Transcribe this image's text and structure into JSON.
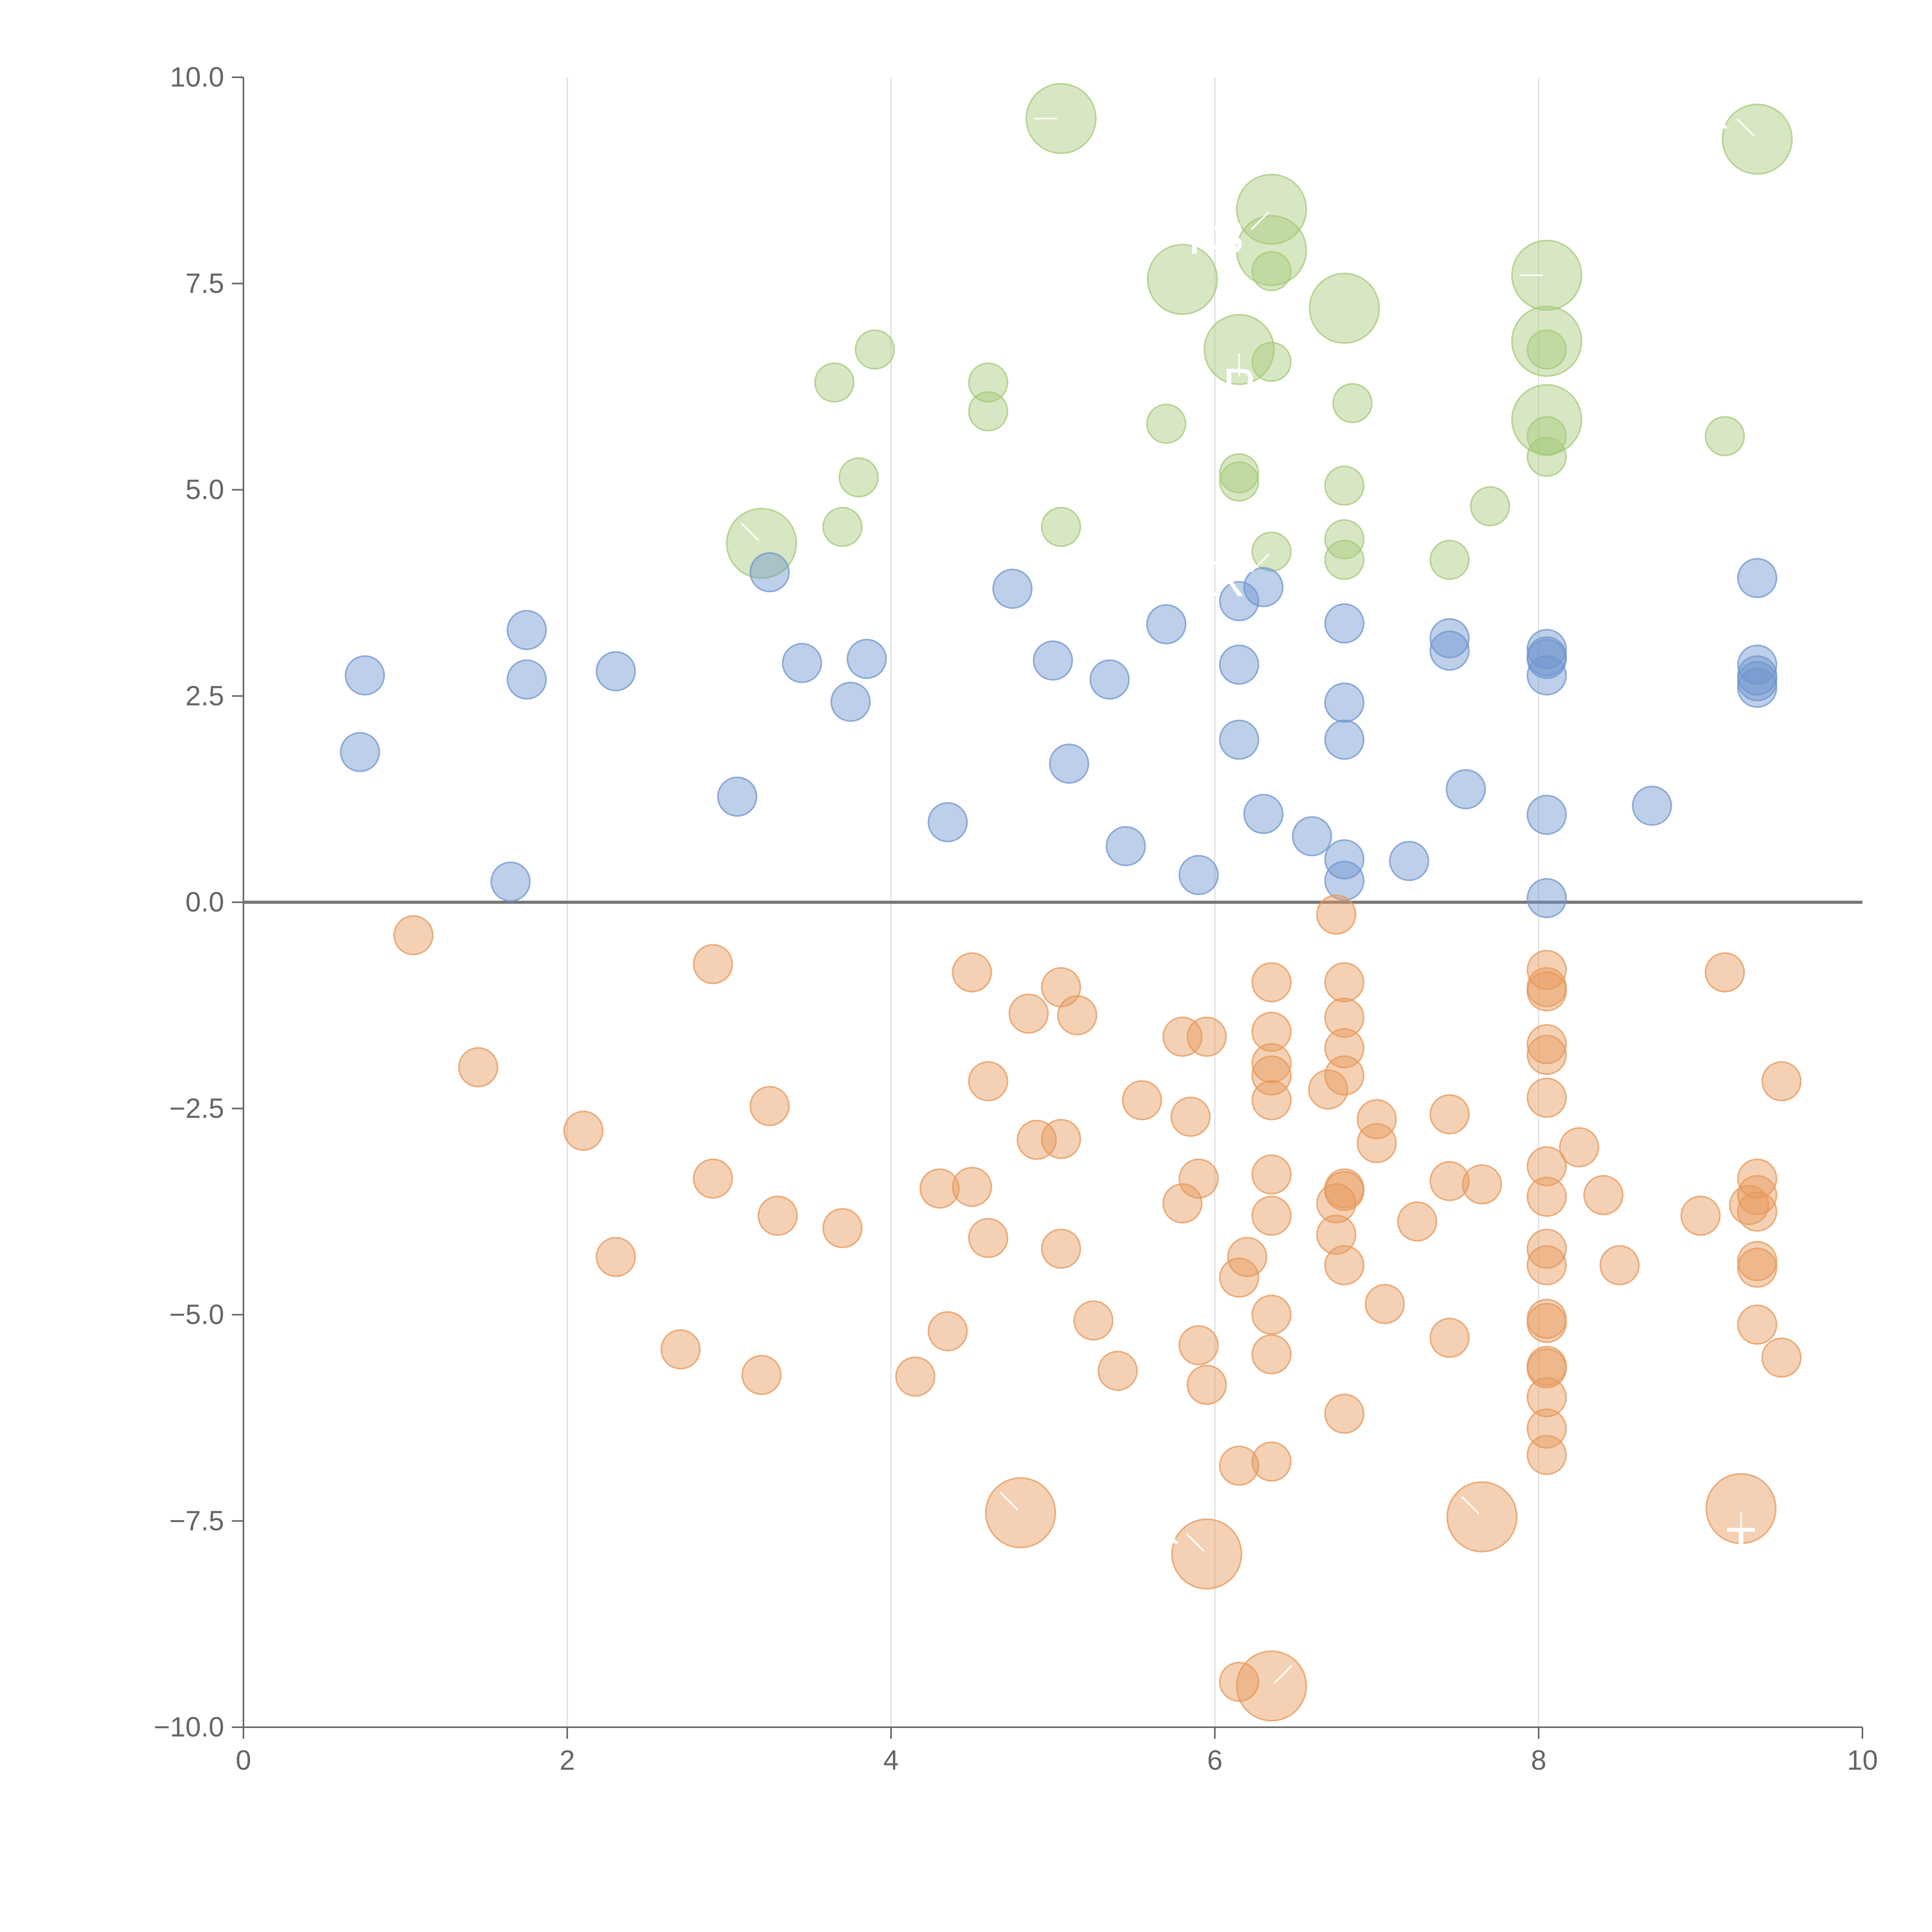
{
  "chart_data": {
    "type": "scatter",
    "title": "",
    "xlabel": "",
    "ylabel": "",
    "xlim": [
      0,
      10
    ],
    "ylim": [
      -10,
      10
    ],
    "grid": "vertical",
    "x_ticks": [
      0,
      2,
      4,
      6,
      8,
      10
    ],
    "x_tick_labels": [
      "0",
      "2",
      "4",
      "6",
      "8",
      "10"
    ],
    "y_ticks": [
      -10,
      -7.5,
      -5,
      -2.5,
      0,
      2.5,
      5,
      7.5,
      10
    ],
    "y_tick_labels": [
      "−10.0",
      "−7.5",
      "−5.0",
      "−2.5",
      "0.0",
      "2.5",
      "5.0",
      "7.5",
      "10.0"
    ],
    "colors": {
      "green": "#a6c97a",
      "blue": "#6f95cf",
      "orange": "#e6985b",
      "axis": "#666666",
      "zero_line": "#777777",
      "grid": "#dddddd",
      "label": "#ffffff"
    },
    "series": [
      {
        "name": "green",
        "color": "#a6c97a",
        "points": [
          [
            5.05,
            9.5,
            2
          ],
          [
            9.35,
            9.25,
            2
          ],
          [
            6.35,
            8.4,
            2
          ],
          [
            6.35,
            7.9,
            2
          ],
          [
            6.35,
            7.65,
            1
          ],
          [
            5.8,
            7.55,
            2
          ],
          [
            8.05,
            7.6,
            2
          ],
          [
            6.8,
            7.2,
            2
          ],
          [
            6.15,
            6.7,
            2
          ],
          [
            8.05,
            6.8,
            2
          ],
          [
            6.35,
            6.55,
            1
          ],
          [
            3.9,
            6.7,
            1
          ],
          [
            3.65,
            6.3,
            1
          ],
          [
            4.6,
            6.3,
            1
          ],
          [
            4.6,
            5.95,
            1
          ],
          [
            6.85,
            6.05,
            1
          ],
          [
            8.05,
            5.85,
            2
          ],
          [
            8.05,
            6.7,
            1
          ],
          [
            8.05,
            5.65,
            1
          ],
          [
            8.05,
            5.4,
            1
          ],
          [
            5.7,
            5.8,
            1
          ],
          [
            9.15,
            5.65,
            1
          ],
          [
            3.8,
            5.15,
            1
          ],
          [
            6.15,
            5.2,
            1
          ],
          [
            6.15,
            5.1,
            1
          ],
          [
            6.8,
            5.05,
            1
          ],
          [
            7.7,
            4.8,
            1
          ],
          [
            3.2,
            4.35,
            2
          ],
          [
            3.7,
            4.55,
            1
          ],
          [
            5.05,
            4.55,
            1
          ],
          [
            6.35,
            4.25,
            1
          ],
          [
            6.8,
            4.4,
            1
          ],
          [
            6.8,
            4.15,
            1
          ],
          [
            7.45,
            4.15,
            1
          ]
        ],
        "labels": [
          {
            "text": "I",
            "at": [
              5.05,
              9.5
            ],
            "dir": "l"
          },
          {
            "text": "R",
            "at": [
              9.35,
              9.25
            ],
            "dir": "tl"
          },
          {
            "text": "YS",
            "at": [
              6.35,
              8.4
            ],
            "dir": "bl"
          },
          {
            "text": "F",
            "at": [
              8.05,
              7.6
            ],
            "dir": "l"
          },
          {
            "text": "P",
            "at": [
              6.15,
              6.7
            ],
            "dir": "b"
          },
          {
            "text": "X",
            "at": [
              6.35,
              4.25
            ],
            "dir": "bl"
          },
          {
            "text": "V",
            "at": [
              3.2,
              4.35
            ],
            "dir": "tl"
          }
        ]
      },
      {
        "name": "blue",
        "color": "#6f95cf",
        "points": [
          [
            0.75,
            2.75
          ],
          [
            0.72,
            1.82
          ],
          [
            1.75,
            3.3
          ],
          [
            1.75,
            2.7
          ],
          [
            2.3,
            2.8
          ],
          [
            1.65,
            0.25
          ],
          [
            3.05,
            1.28
          ],
          [
            3.25,
            4.0
          ],
          [
            3.45,
            2.9
          ],
          [
            3.75,
            2.43
          ],
          [
            3.85,
            2.95
          ],
          [
            4.35,
            0.97
          ],
          [
            4.75,
            3.8
          ],
          [
            5.0,
            2.93
          ],
          [
            5.1,
            1.68
          ],
          [
            5.35,
            2.7
          ],
          [
            5.45,
            0.68
          ],
          [
            5.7,
            3.37
          ],
          [
            5.9,
            0.33
          ],
          [
            6.15,
            3.65
          ],
          [
            6.15,
            2.88
          ],
          [
            6.15,
            1.97
          ],
          [
            6.3,
            3.82
          ],
          [
            6.3,
            1.07
          ],
          [
            6.6,
            0.8
          ],
          [
            6.8,
            3.38
          ],
          [
            6.8,
            2.42
          ],
          [
            6.8,
            1.97
          ],
          [
            6.8,
            0.52
          ],
          [
            6.8,
            0.26
          ],
          [
            7.2,
            0.5
          ],
          [
            7.45,
            3.2
          ],
          [
            7.45,
            3.05
          ],
          [
            7.55,
            1.37
          ],
          [
            8.05,
            3.07
          ],
          [
            8.05,
            2.98
          ],
          [
            8.05,
            2.95
          ],
          [
            8.05,
            2.75
          ],
          [
            8.05,
            1.06
          ],
          [
            8.05,
            0.05
          ],
          [
            8.7,
            1.17
          ],
          [
            9.35,
            3.93
          ],
          [
            9.35,
            2.88
          ],
          [
            9.35,
            2.75
          ],
          [
            9.35,
            2.68
          ],
          [
            9.35,
            2.6
          ]
        ]
      },
      {
        "name": "orange",
        "color": "#e6985b",
        "points": [
          [
            1.05,
            -0.4,
            1
          ],
          [
            1.45,
            -2.0,
            1
          ],
          [
            2.1,
            -2.77,
            1
          ],
          [
            2.3,
            -4.3,
            1
          ],
          [
            2.7,
            -5.42,
            1
          ],
          [
            2.9,
            -0.75,
            1
          ],
          [
            2.9,
            -3.35,
            1
          ],
          [
            3.2,
            -5.73,
            1
          ],
          [
            3.25,
            -2.47,
            1
          ],
          [
            3.3,
            -3.8,
            1
          ],
          [
            3.7,
            -3.95,
            1
          ],
          [
            4.15,
            -5.75,
            1
          ],
          [
            4.3,
            -3.47,
            1
          ],
          [
            4.35,
            -5.2,
            1
          ],
          [
            4.5,
            -0.85,
            1
          ],
          [
            4.5,
            -3.45,
            1
          ],
          [
            4.6,
            -2.17,
            1
          ],
          [
            4.6,
            -4.07,
            1
          ],
          [
            4.8,
            -7.4,
            2
          ],
          [
            4.85,
            -1.35,
            1
          ],
          [
            4.9,
            -2.88,
            1
          ],
          [
            5.05,
            -1.03,
            1
          ],
          [
            5.05,
            -2.87,
            1
          ],
          [
            5.05,
            -4.2,
            1
          ],
          [
            5.15,
            -1.37,
            1
          ],
          [
            5.25,
            -5.07,
            1
          ],
          [
            5.4,
            -5.68,
            1
          ],
          [
            5.55,
            -2.4,
            1
          ],
          [
            5.8,
            -1.63,
            1
          ],
          [
            5.8,
            -3.65,
            1
          ],
          [
            5.85,
            -2.6,
            1
          ],
          [
            5.9,
            -5.37,
            1
          ],
          [
            5.9,
            -3.35,
            1
          ],
          [
            5.95,
            -1.63,
            1
          ],
          [
            5.95,
            -5.85,
            1
          ],
          [
            5.95,
            -7.9,
            2
          ],
          [
            6.15,
            -4.55,
            1
          ],
          [
            6.15,
            -6.83,
            1
          ],
          [
            6.15,
            -9.45,
            1
          ],
          [
            6.2,
            -4.3,
            1
          ],
          [
            6.35,
            -0.97,
            1
          ],
          [
            6.35,
            -1.57,
            1
          ],
          [
            6.35,
            -1.95,
            1
          ],
          [
            6.35,
            -2.1,
            1
          ],
          [
            6.35,
            -2.4,
            1
          ],
          [
            6.35,
            -3.3,
            1
          ],
          [
            6.35,
            -3.8,
            1
          ],
          [
            6.35,
            -5.0,
            1
          ],
          [
            6.35,
            -5.48,
            1
          ],
          [
            6.35,
            -6.78,
            1
          ],
          [
            6.35,
            -9.5,
            2
          ],
          [
            6.7,
            -2.27,
            1
          ],
          [
            6.75,
            -3.65,
            1
          ],
          [
            6.75,
            -4.03,
            1
          ],
          [
            6.75,
            -0.15,
            1
          ],
          [
            6.8,
            -0.97,
            1
          ],
          [
            6.8,
            -1.4,
            1
          ],
          [
            6.8,
            -1.77,
            1
          ],
          [
            6.8,
            -2.1,
            1
          ],
          [
            6.8,
            -3.47,
            1
          ],
          [
            6.8,
            -3.5,
            1
          ],
          [
            6.8,
            -4.4,
            1
          ],
          [
            6.8,
            -6.2,
            1
          ],
          [
            7.0,
            -2.63,
            1
          ],
          [
            7.0,
            -2.92,
            1
          ],
          [
            7.05,
            -4.87,
            1
          ],
          [
            7.25,
            -3.87,
            1
          ],
          [
            7.45,
            -2.57,
            1
          ],
          [
            7.45,
            -3.38,
            1
          ],
          [
            7.45,
            -5.28,
            1
          ],
          [
            7.65,
            -3.42,
            1
          ],
          [
            7.65,
            -7.45,
            2
          ],
          [
            8.05,
            -0.82,
            1
          ],
          [
            8.05,
            -1.03,
            1
          ],
          [
            8.05,
            -1.08,
            1
          ],
          [
            8.05,
            -1.72,
            1
          ],
          [
            8.05,
            -1.85,
            1
          ],
          [
            8.05,
            -2.37,
            1
          ],
          [
            8.05,
            -3.2,
            1
          ],
          [
            8.05,
            -3.57,
            1
          ],
          [
            8.05,
            -4.2,
            1
          ],
          [
            8.05,
            -4.4,
            1
          ],
          [
            8.05,
            -5.05,
            1
          ],
          [
            8.05,
            -5.1,
            1
          ],
          [
            8.05,
            -5.62,
            1
          ],
          [
            8.05,
            -5.65,
            1
          ],
          [
            8.05,
            -6.0,
            1
          ],
          [
            8.05,
            -6.38,
            1
          ],
          [
            8.05,
            -6.7,
            1
          ],
          [
            8.25,
            -2.97,
            1
          ],
          [
            8.4,
            -3.55,
            1
          ],
          [
            8.5,
            -4.4,
            1
          ],
          [
            9.0,
            -3.8,
            1
          ],
          [
            9.15,
            -0.85,
            1
          ],
          [
            9.25,
            -7.35,
            2
          ],
          [
            9.3,
            -3.67,
            1
          ],
          [
            9.35,
            -3.35,
            1
          ],
          [
            9.35,
            -3.55,
            1
          ],
          [
            9.35,
            -3.75,
            1
          ],
          [
            9.35,
            -4.35,
            1
          ],
          [
            9.35,
            -4.43,
            1
          ],
          [
            9.35,
            -5.12,
            1
          ],
          [
            9.5,
            -2.17,
            1
          ],
          [
            9.5,
            -5.52,
            1
          ]
        ],
        "labels": [
          {
            "text": "O",
            "at": [
              4.8,
              -7.4
            ],
            "dir": "tl"
          },
          {
            "text": "K",
            "at": [
              5.95,
              -7.9
            ],
            "dir": "tl"
          },
          {
            "text": "V",
            "at": [
              7.65,
              -7.45
            ],
            "dir": "tl"
          },
          {
            "text": "T",
            "at": [
              9.25,
              -7.35
            ],
            "dir": "b"
          },
          {
            "text": "C",
            "at": [
              6.35,
              -9.5
            ],
            "dir": "tr"
          }
        ]
      }
    ]
  }
}
